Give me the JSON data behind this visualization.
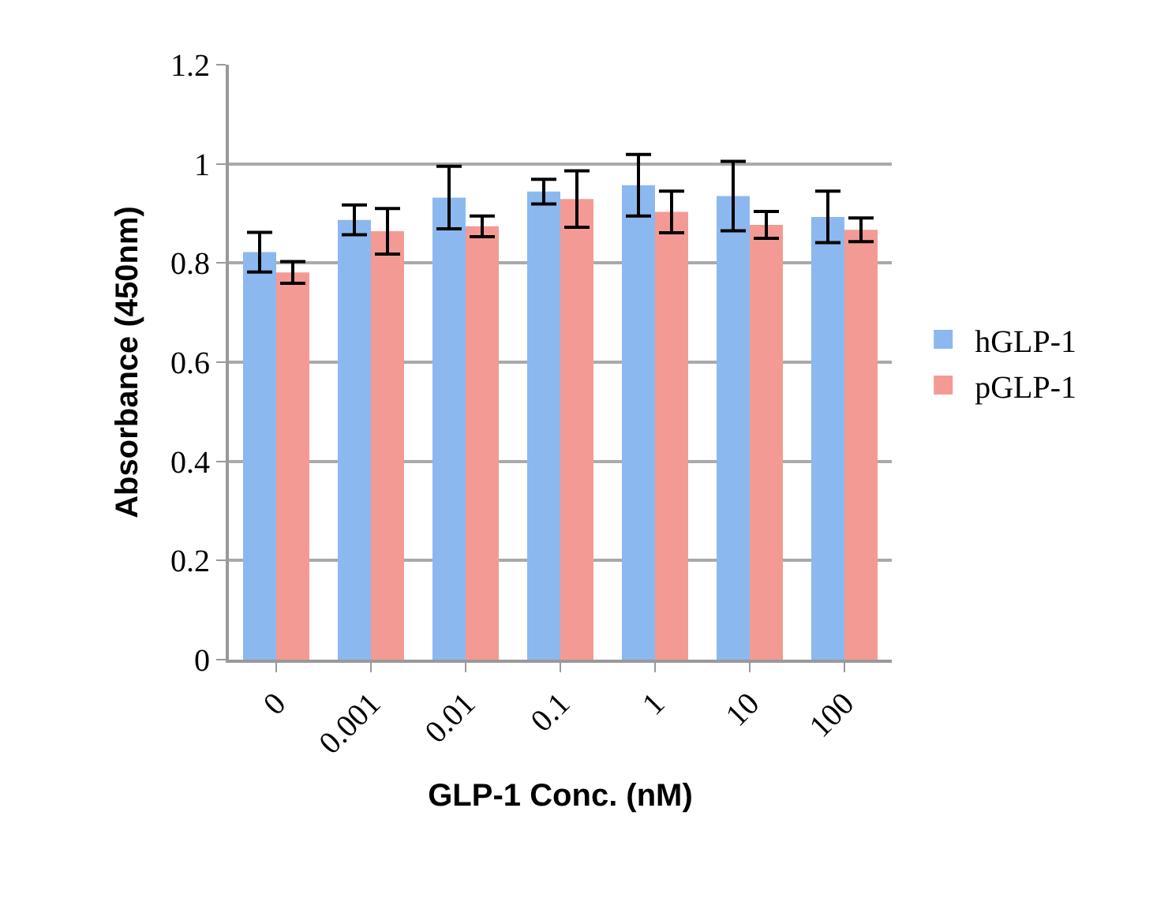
{
  "chart_data": {
    "type": "bar",
    "xlabel": "GLP-1 Conc. (nM)",
    "ylabel": "Absorbance (450nm)",
    "categories": [
      "0",
      "0.001",
      "0.01",
      "0.1",
      "1",
      "10",
      "100"
    ],
    "series": [
      {
        "name": "hGLP-1",
        "color": "#8cb8f0",
        "values": [
          0.822,
          0.887,
          0.932,
          0.944,
          0.957,
          0.935,
          0.893
        ],
        "errors": [
          0.04,
          0.03,
          0.063,
          0.025,
          0.062,
          0.07,
          0.052
        ]
      },
      {
        "name": "pGLP-1",
        "color": "#f49a94",
        "values": [
          0.781,
          0.864,
          0.874,
          0.929,
          0.903,
          0.877,
          0.867
        ],
        "errors": [
          0.022,
          0.046,
          0.021,
          0.057,
          0.042,
          0.027,
          0.024
        ]
      }
    ],
    "ylim": [
      0,
      1.2
    ],
    "yticks": [
      0,
      0.2,
      0.4,
      0.6,
      0.8,
      1,
      1.2
    ],
    "grid": "y",
    "legend": "right"
  }
}
